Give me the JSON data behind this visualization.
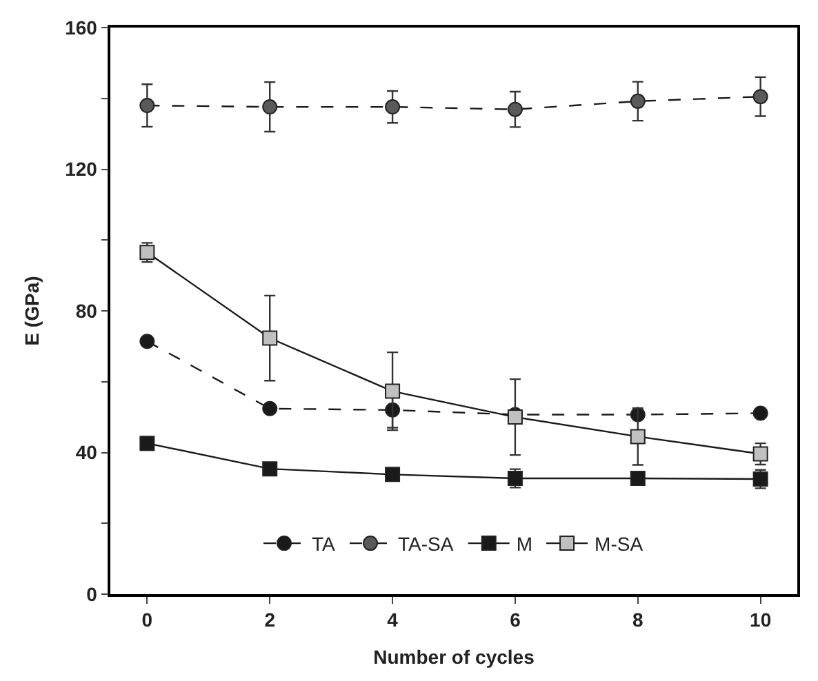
{
  "chart_data": {
    "type": "line",
    "xlabel": "Number of cycles",
    "ylabel": "E (GPa)",
    "x": [
      0,
      2,
      4,
      6,
      8,
      10
    ],
    "xlim": [
      -0.6,
      10.6
    ],
    "xticks": [
      0,
      2,
      4,
      6,
      8,
      10
    ],
    "ylim": [
      0,
      160
    ],
    "yticks": [
      0,
      {
        "value": 20,
        "label": null
      },
      40,
      {
        "value": 60,
        "label": null
      },
      80,
      {
        "value": 100,
        "label": null
      },
      120,
      {
        "value": 140,
        "label": null
      },
      160
    ],
    "legend": "bottom",
    "series": [
      {
        "name": "TA",
        "color": "#1a1a1a",
        "marker": "circle",
        "line_style": "dashed",
        "values": [
          71.4,
          52.4,
          52,
          50.7,
          50.7,
          51.1
        ],
        "errors": [
          null,
          null,
          5,
          null,
          null,
          null
        ]
      },
      {
        "name": "TA-SA",
        "color": "#5a5a5a",
        "marker": "circle",
        "line_style": "dashed",
        "values": [
          138,
          137.6,
          137.6,
          136.9,
          139.2,
          140.5
        ],
        "errors": [
          6,
          7,
          4.5,
          5,
          5.5,
          5.5
        ]
      },
      {
        "name": "M",
        "color": "#1a1a1a",
        "marker": "square",
        "line_style": "solid",
        "values": [
          42.6,
          35.4,
          33.8,
          32.7,
          32.7,
          32.5
        ],
        "errors": [
          null,
          null,
          null,
          2.6,
          null,
          2.6
        ]
      },
      {
        "name": "M-SA",
        "color": "#c0c0c0",
        "marker": "square",
        "line_style": "solid",
        "values": [
          96.5,
          72.3,
          57.3,
          50,
          44.5,
          39.6
        ],
        "errors": [
          2.7,
          12,
          11,
          10.7,
          8,
          3
        ]
      }
    ]
  }
}
